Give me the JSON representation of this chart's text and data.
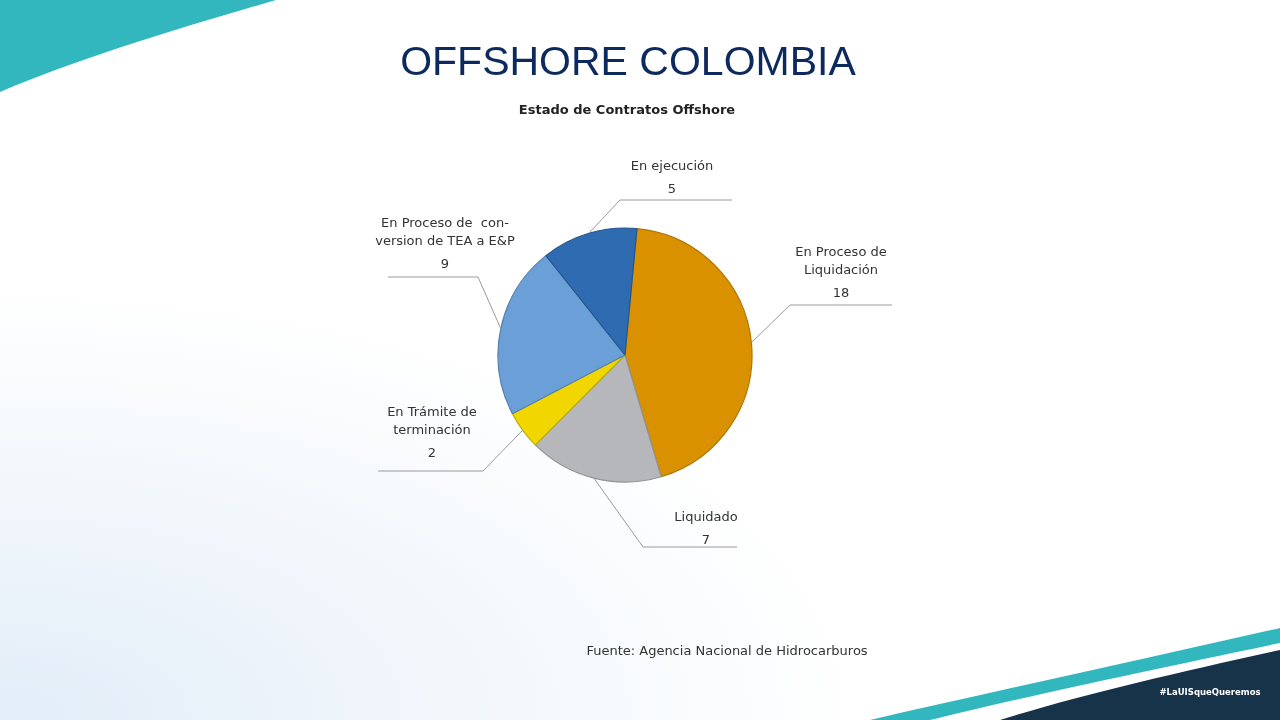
{
  "chart_data": {
    "type": "pie",
    "title": "OFFSHORE COLOMBIA",
    "subtitle": "Estado de Contratos Offshore",
    "categories": [
      "En Proceso de\nLiquidación",
      "Liquidado",
      "En Trámite de\nterminación",
      "En Proceso de  con-\nversion de TEA a E&P",
      "En ejecución"
    ],
    "values": [
      18,
      7,
      2,
      9,
      5
    ],
    "colors": [
      "#d99100",
      "#b5b7bb",
      "#f2d600",
      "#6a9fd7",
      "#2f6bb0"
    ],
    "data_labels": true,
    "annotations": [
      "Fuente: Agencia Nacional de Hidrocarburos",
      "#LaUISqueQueremos"
    ]
  }
}
